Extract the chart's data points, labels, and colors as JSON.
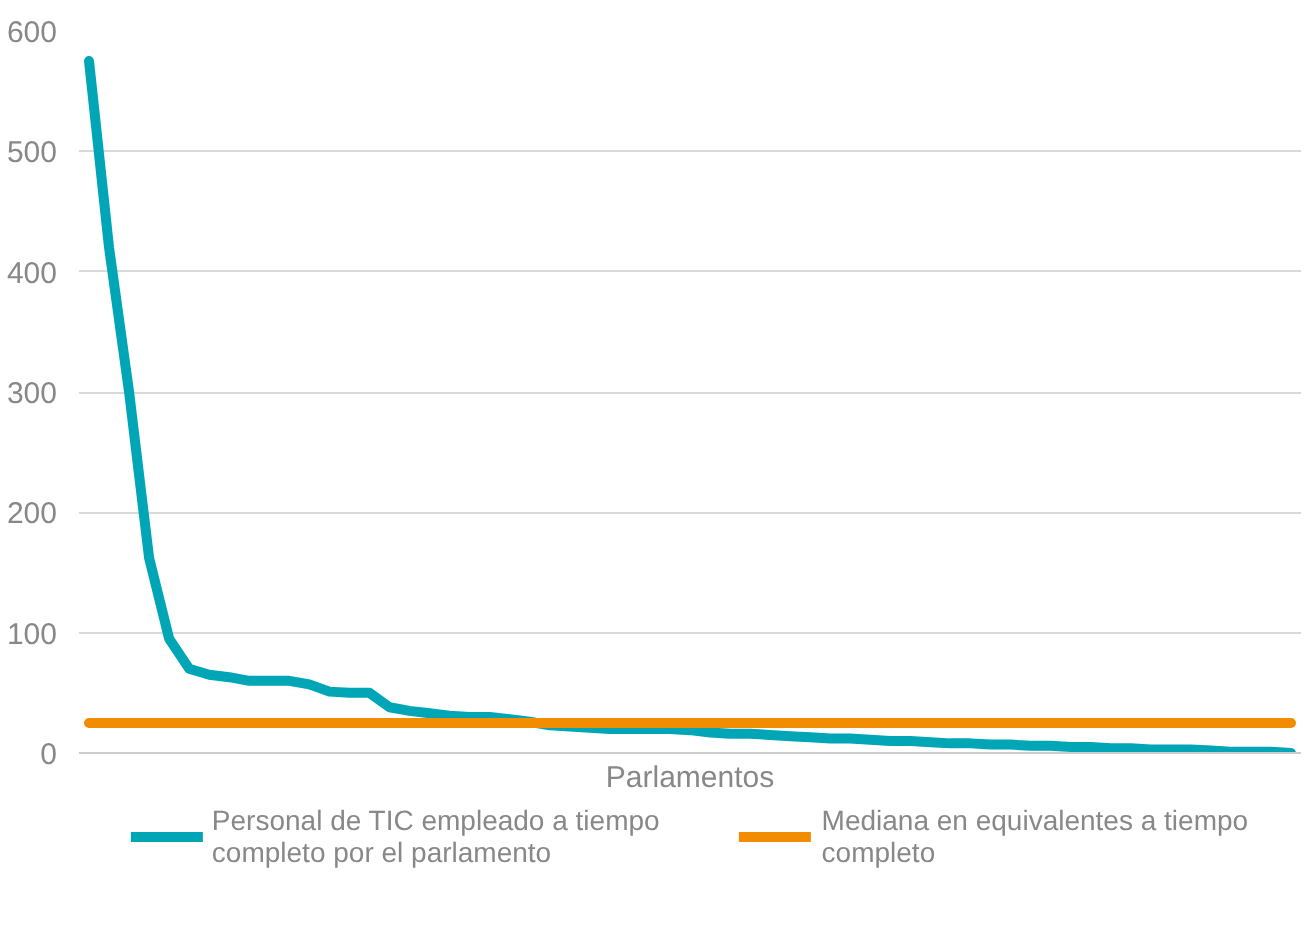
{
  "chart_data": {
    "type": "line",
    "xlabel": "Parlamentos",
    "categories": [
      null,
      null,
      null,
      null,
      null,
      null,
      null,
      null,
      null,
      null,
      null,
      null,
      null,
      null,
      null,
      null,
      null,
      null,
      null,
      null,
      null,
      null,
      null,
      null,
      null,
      null,
      null,
      null,
      null,
      null,
      null,
      null,
      null,
      null,
      null,
      null,
      null,
      null,
      null,
      null,
      null,
      null,
      null,
      null,
      null,
      null,
      null,
      null,
      null,
      null,
      null,
      null,
      null,
      null,
      null,
      null,
      null,
      null,
      null,
      null,
      null
    ],
    "series": [
      {
        "name": "Personal de TIC empleado a tiempo completo por el parlamento",
        "color": "#00a6b6",
        "values": [
          575,
          420,
          300,
          162,
          95,
          70,
          65,
          63,
          60,
          60,
          60,
          57,
          51,
          50,
          50,
          38,
          35,
          33,
          31,
          30,
          30,
          28,
          26,
          23,
          22,
          21,
          20,
          20,
          20,
          20,
          19,
          17,
          16,
          16,
          15,
          14,
          13,
          12,
          12,
          11,
          10,
          10,
          9,
          8,
          8,
          7,
          7,
          6,
          6,
          5,
          5,
          4,
          4,
          3,
          3,
          3,
          2,
          1,
          1,
          1,
          0
        ]
      },
      {
        "name": "Mediana en equivalentes a tiempo completo",
        "color": "#f28c00",
        "values": [
          25,
          25,
          25,
          25,
          25,
          25,
          25,
          25,
          25,
          25,
          25,
          25,
          25,
          25,
          25,
          25,
          25,
          25,
          25,
          25,
          25,
          25,
          25,
          25,
          25,
          25,
          25,
          25,
          25,
          25,
          25,
          25,
          25,
          25,
          25,
          25,
          25,
          25,
          25,
          25,
          25,
          25,
          25,
          25,
          25,
          25,
          25,
          25,
          25,
          25,
          25,
          25,
          25,
          25,
          25,
          25,
          25,
          25,
          25,
          25,
          25
        ]
      }
    ],
    "ylim": [
      0,
      600
    ],
    "yticks": [
      0,
      100,
      200,
      300,
      400,
      500,
      600
    ],
    "grid": "y",
    "legend": "bottom",
    "line_style": "solid",
    "marker": "none"
  }
}
